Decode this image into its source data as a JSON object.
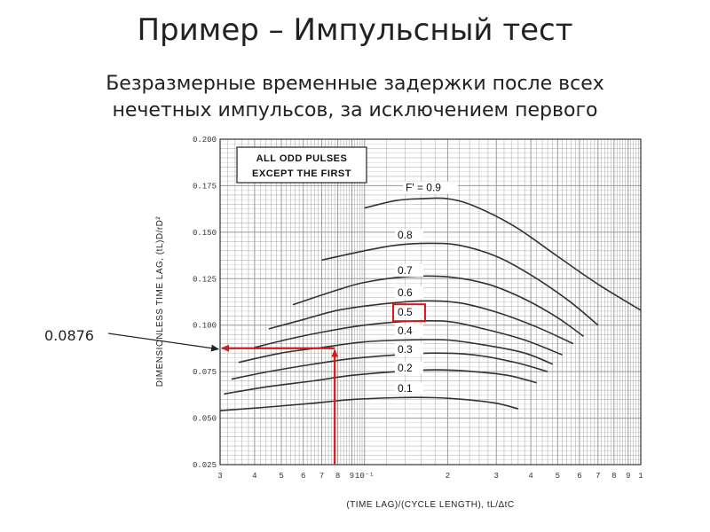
{
  "slide": {
    "title": "Пример – Импульсный тест",
    "subtitle_line1": "Безразмерные временные задержки после всех",
    "subtitle_line2": "нечетных импульсов, за исключением первого"
  },
  "chart_data": {
    "type": "line",
    "xlabel": "(TIME LAG)/(CYCLE LENGTH), tL/ΔtC",
    "ylabel": "DIMENSIONLESS TIME LAG, (tL)D/rD²",
    "x_scale": "log",
    "xlim": [
      0.03,
      1.0
    ],
    "ylim": [
      0.025,
      0.2
    ],
    "x_tick_labels": [
      "3",
      "4",
      "5",
      "6",
      "7",
      "8",
      "9",
      "10⁻¹",
      "2",
      "3",
      "4",
      "5",
      "6",
      "7",
      "8",
      "9",
      "1"
    ],
    "y_tick_labels": [
      "0.025",
      "0.050",
      "0.075",
      "0.100",
      "0.125",
      "0.150",
      "0.175",
      "0.200"
    ],
    "grid": true,
    "annotation_box": [
      "ALL ODD PULSES",
      "EXCEPT THE FIRST"
    ],
    "series": [
      {
        "name": "F' = 0.9",
        "x": [
          0.1,
          0.13,
          0.16,
          0.2,
          0.25,
          0.35,
          0.5,
          0.7,
          1.0
        ],
        "y": [
          0.163,
          0.167,
          0.168,
          0.168,
          0.164,
          0.153,
          0.137,
          0.122,
          0.108
        ]
      },
      {
        "name": "0.8",
        "x": [
          0.07,
          0.1,
          0.13,
          0.17,
          0.22,
          0.3,
          0.4,
          0.55,
          0.7
        ],
        "y": [
          0.135,
          0.14,
          0.143,
          0.144,
          0.143,
          0.137,
          0.127,
          0.113,
          0.1
        ]
      },
      {
        "name": "0.7",
        "x": [
          0.055,
          0.08,
          0.1,
          0.14,
          0.2,
          0.28,
          0.38,
          0.5,
          0.62
        ],
        "y": [
          0.111,
          0.119,
          0.123,
          0.126,
          0.126,
          0.122,
          0.114,
          0.104,
          0.094
        ]
      },
      {
        "name": "0.6",
        "x": [
          0.045,
          0.06,
          0.08,
          0.11,
          0.16,
          0.22,
          0.3,
          0.42,
          0.57
        ],
        "y": [
          0.098,
          0.103,
          0.108,
          0.111,
          0.113,
          0.112,
          0.107,
          0.099,
          0.09
        ]
      },
      {
        "name": "0.5",
        "x": [
          0.04,
          0.055,
          0.075,
          0.1,
          0.14,
          0.2,
          0.27,
          0.38,
          0.52
        ],
        "y": [
          0.088,
          0.093,
          0.097,
          0.1,
          0.102,
          0.102,
          0.098,
          0.092,
          0.084
        ]
      },
      {
        "name": "0.4",
        "x": [
          0.035,
          0.05,
          0.07,
          0.1,
          0.14,
          0.2,
          0.28,
          0.38,
          0.48
        ],
        "y": [
          0.08,
          0.085,
          0.088,
          0.091,
          0.092,
          0.092,
          0.089,
          0.085,
          0.079
        ]
      },
      {
        "name": "0.3",
        "x": [
          0.033,
          0.045,
          0.065,
          0.09,
          0.13,
          0.18,
          0.25,
          0.35,
          0.46
        ],
        "y": [
          0.071,
          0.075,
          0.079,
          0.082,
          0.084,
          0.085,
          0.084,
          0.08,
          0.075
        ]
      },
      {
        "name": "0.2",
        "x": [
          0.031,
          0.045,
          0.065,
          0.09,
          0.13,
          0.18,
          0.25,
          0.33,
          0.42
        ],
        "y": [
          0.063,
          0.067,
          0.07,
          0.073,
          0.075,
          0.076,
          0.075,
          0.073,
          0.069
        ]
      },
      {
        "name": "0.1",
        "x": [
          0.03,
          0.045,
          0.065,
          0.09,
          0.13,
          0.18,
          0.23,
          0.3,
          0.36
        ],
        "y": [
          0.054,
          0.056,
          0.058,
          0.06,
          0.061,
          0.061,
          0.06,
          0.058,
          0.055
        ]
      }
    ],
    "highlighted_series": "0.5",
    "readout": {
      "label": "0.0876",
      "x": 0.078,
      "y": 0.0876
    },
    "colors": {
      "curve": "#333333",
      "grid": "#9a9a9a",
      "highlight": "#d81818",
      "background": "#ffffff"
    }
  }
}
